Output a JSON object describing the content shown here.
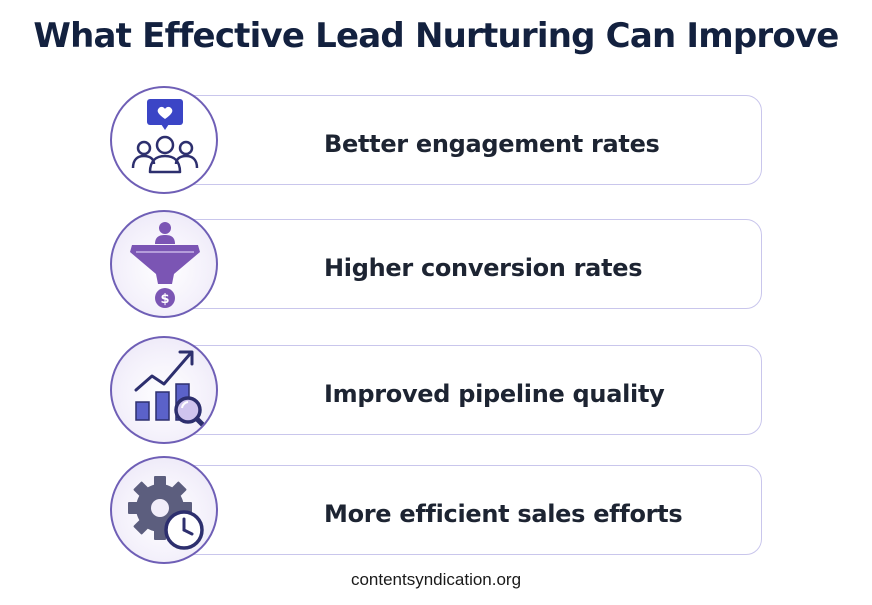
{
  "title": "What Effective Lead Nurturing Can Improve",
  "items": [
    {
      "label": "Better engagement rates",
      "icon": "engagement-users-heart-icon"
    },
    {
      "label": "Higher conversion rates",
      "icon": "conversion-funnel-dollar-icon"
    },
    {
      "label": "Improved pipeline quality",
      "icon": "pipeline-chart-magnifier-icon"
    },
    {
      "label": "More efficient sales efforts",
      "icon": "gear-clock-icon"
    }
  ],
  "footer": "contentsyndication.org",
  "colors": {
    "title": "#13213f",
    "text": "#1d2432",
    "card_border": "#c9c6ec",
    "circle_border": "#6f5fb6",
    "icon_purple": "#7b55b4",
    "icon_blue": "#3b45c6",
    "icon_dark": "#2d2f6e"
  }
}
